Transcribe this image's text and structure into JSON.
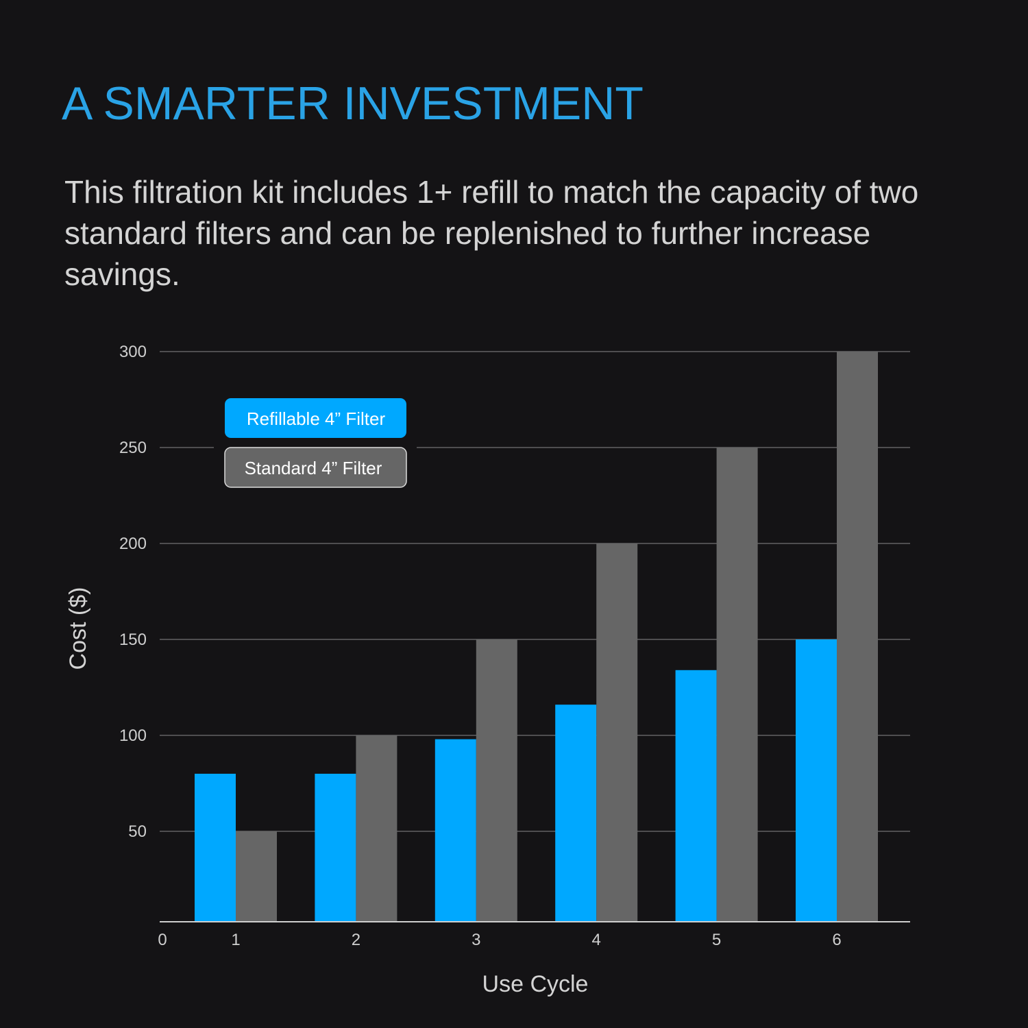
{
  "header": {
    "title": "A SMARTER INVESTMENT",
    "subtitle": "This filtration kit includes 1+ refill to match the capacity of two standard filters and can be replenished to further increase savings."
  },
  "chart_data": {
    "type": "bar",
    "title": "",
    "xlabel": "Use Cycle",
    "ylabel": "Cost ($)",
    "categories": [
      "1",
      "2",
      "3",
      "4",
      "5",
      "6"
    ],
    "x_origin_label": "0",
    "ylim": [
      0,
      300
    ],
    "yticks": [
      "50",
      "100",
      "150",
      "200",
      "250",
      "300"
    ],
    "grid": true,
    "legend_placement": "top-left",
    "series": [
      {
        "name": "Refillable 4” Filter",
        "color": "#00a8ff",
        "values": [
          80,
          80,
          98,
          116,
          134,
          150
        ]
      },
      {
        "name": "Standard 4” Filter",
        "color": "#666666",
        "values": [
          50,
          100,
          150,
          200,
          250,
          300
        ]
      }
    ]
  }
}
